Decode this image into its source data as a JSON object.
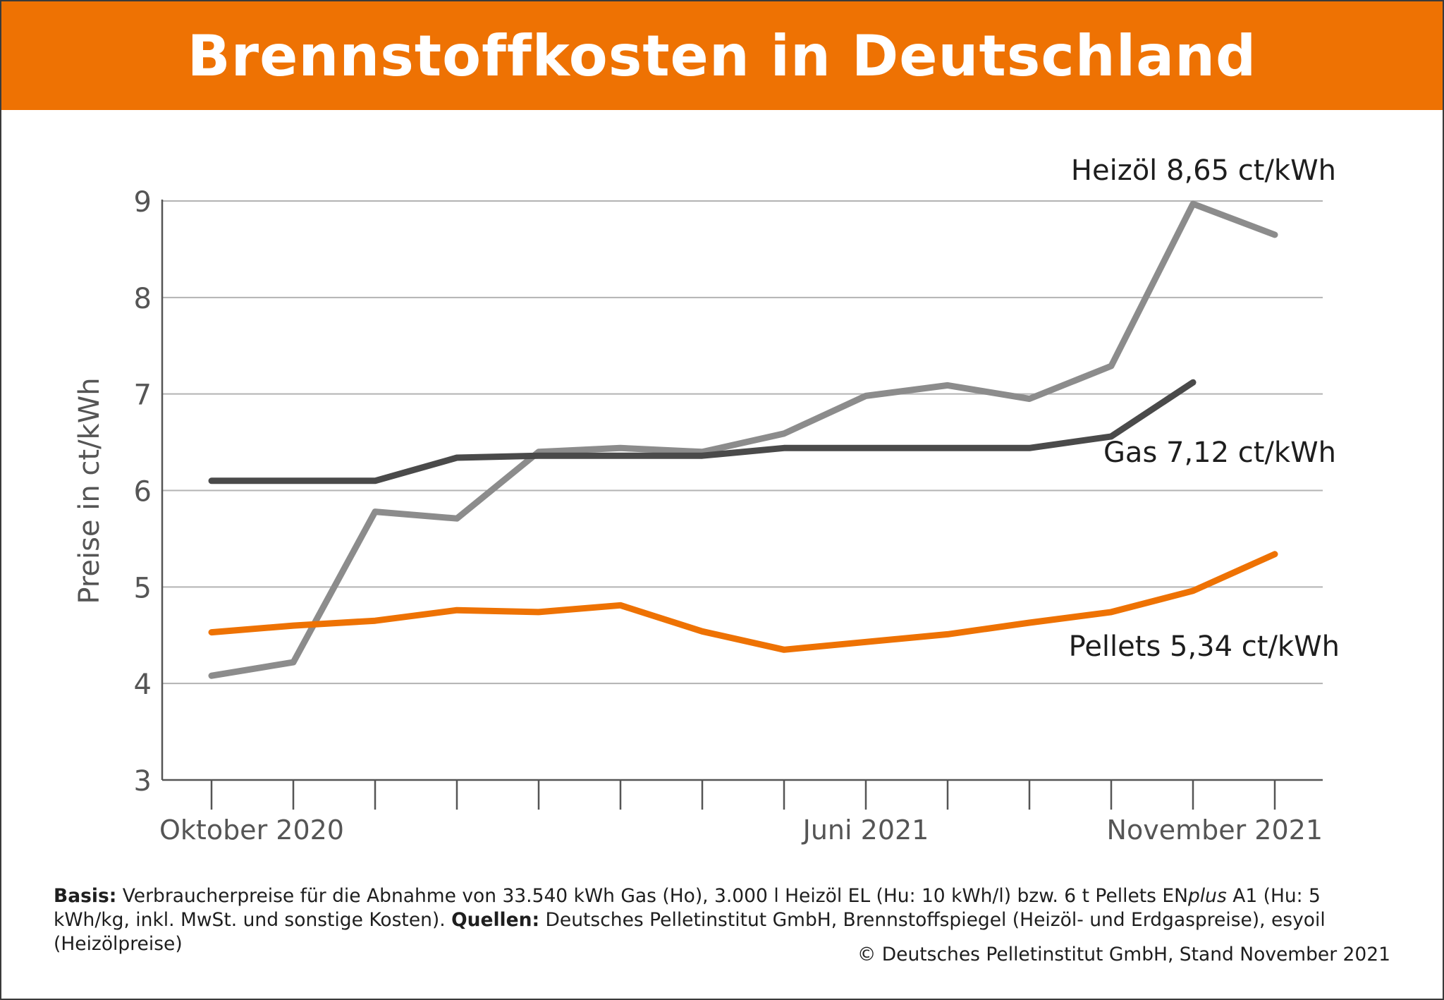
{
  "title": "Brennstoffkosten in Deutschland",
  "chart_data": {
    "type": "line",
    "ylabel": "Preise in ct/kWh",
    "ylim": [
      3,
      9
    ],
    "yticks": [
      3,
      4,
      5,
      6,
      7,
      8,
      9
    ],
    "grid": true,
    "x": [
      "2020-10",
      "2020-11",
      "2020-12",
      "2021-01",
      "2021-02",
      "2021-03",
      "2021-04",
      "2021-05",
      "2021-06",
      "2021-07",
      "2021-08",
      "2021-09",
      "2021-10",
      "2021-11"
    ],
    "xtick_labels": [
      {
        "index": 0,
        "label": "Oktober 2020"
      },
      {
        "index": 8,
        "label": "Juni 2021"
      },
      {
        "index": 13,
        "label": "November 2021"
      }
    ],
    "series": [
      {
        "key": "heizoel",
        "color": "#8c8c8c",
        "values": [
          4.08,
          4.22,
          5.78,
          5.71,
          6.4,
          6.44,
          6.4,
          6.59,
          6.98,
          7.09,
          6.95,
          7.29,
          8.97,
          8.65
        ],
        "annotation": "Heizöl 8,65 ct/kWh"
      },
      {
        "key": "gas",
        "color": "#4a4a4a",
        "values": [
          6.1,
          6.1,
          6.1,
          6.34,
          6.36,
          6.36,
          6.36,
          6.44,
          6.44,
          6.44,
          6.44,
          6.56,
          7.12,
          null
        ],
        "annotation": "Gas 7,12 ct/kWh"
      },
      {
        "key": "pellets",
        "color": "#ee7203",
        "values": [
          4.53,
          4.6,
          4.65,
          4.76,
          4.74,
          4.81,
          4.54,
          4.35,
          4.43,
          4.51,
          4.63,
          4.74,
          4.96,
          5.34
        ],
        "annotation": "Pellets 5,34 ct/kWh"
      }
    ]
  },
  "footer": {
    "basis_label": "Basis:",
    "basis_text": " Verbraucherpreise für die Abnahme von 33.540 kWh Gas (Ho), 3.000 l Heizöl EL (Hu: 10 kWh/l) bzw. 6 t Pellets EN",
    "basis_italic": "plus",
    "basis_text2": " A1 (Hu: 5 kWh/kg, inkl. MwSt. und sonstige Kosten). ",
    "quellen_label": "Quellen:",
    "quellen_text": " Deutsches Pelletinstitut GmbH, Brennstoffspiegel (Heizöl- und Erdgaspreise), esyoil (Heizölpreise)",
    "copyright": "© Deutsches Pelletinstitut GmbH, Stand November 2021"
  }
}
